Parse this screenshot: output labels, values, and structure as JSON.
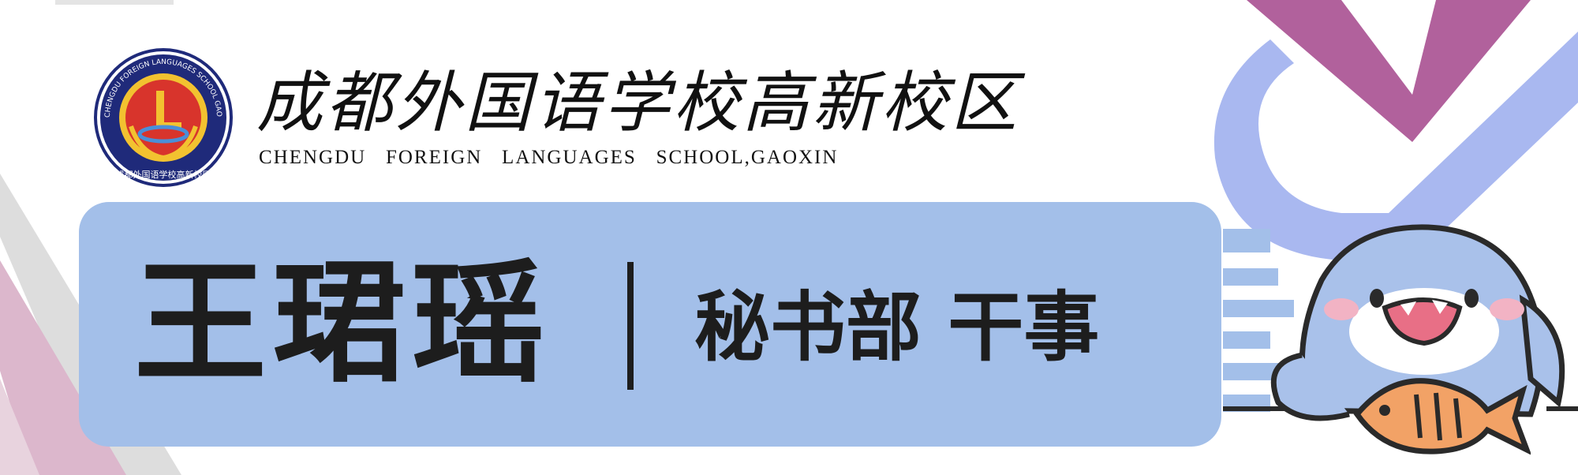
{
  "header": {
    "school_name_cn": "成都外国语学校高新校区",
    "school_name_en": "CHENGDU   FOREIGN   LANGUAGES   SCHOOL,GAOXIN",
    "logo": {
      "ring_text": "CHENGDU FOREIGN LANGUAGES SCHOOL GAOXIN",
      "bottom_text": "成都外国语学校高新校区"
    }
  },
  "banner": {
    "name": "王珺瑶",
    "position": "秘书部 干事"
  },
  "colors": {
    "banner": "#a3bfe9",
    "purple": "#b1619c",
    "periwinkle": "#a9b8f0",
    "pink": "#dcb7cc",
    "text": "#1d1d1d",
    "seal_blue": "#1f2a7a",
    "seal_red": "#d8342c",
    "seal_gold": "#f2c230"
  },
  "icons": [
    "school-seal-icon",
    "shark-mascot-icon",
    "fish-icon"
  ]
}
